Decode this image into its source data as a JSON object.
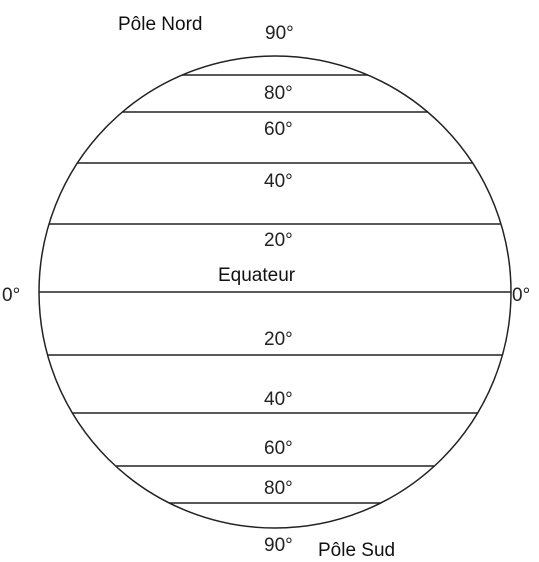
{
  "north_pole": "Pôle Nord",
  "south_pole": "Pôle Sud",
  "equator": "Equateur",
  "north_labels": [
    "90°",
    "80°",
    "60°",
    "40°",
    "20°"
  ],
  "equator_labels": [
    "0°",
    "0°"
  ],
  "south_labels": [
    "20°",
    "40°",
    "60°",
    "80°",
    "90°"
  ]
}
